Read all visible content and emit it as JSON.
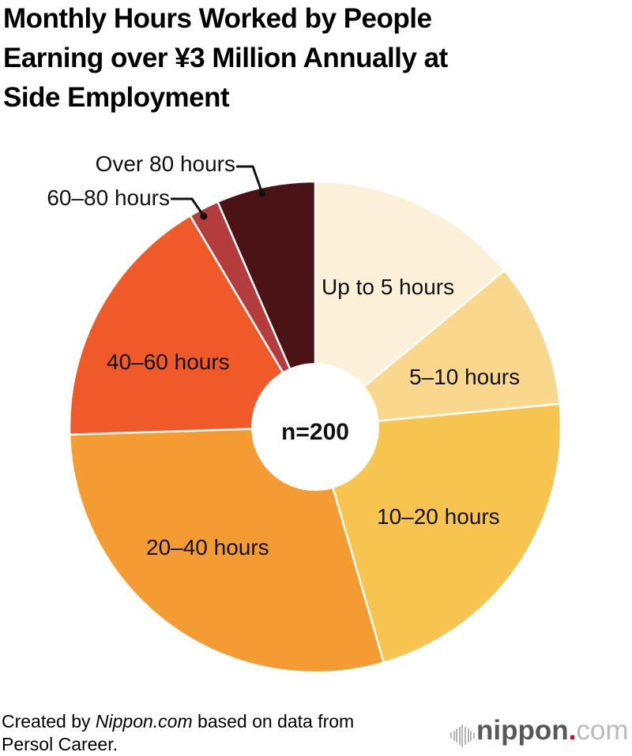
{
  "header": {
    "title_lines": [
      "Monthly Hours Worked by People",
      "Earning over ¥3 Million Annually at",
      "Side Employment"
    ]
  },
  "chart_data": {
    "type": "pie",
    "title": "Monthly Hours Worked by People Earning over ¥3 Million Annually at Side Employment",
    "center_label": "n=200",
    "sample_size": 200,
    "start_angle_deg": 0,
    "direction": "clockwise",
    "donut_hole": true,
    "values_estimated_from_angles": true,
    "slices": [
      {
        "label": "Up to 5 hours",
        "value_pct": 14,
        "color": "#FCF1D8",
        "label_placement": "inside"
      },
      {
        "label": "5–10 hours",
        "value_pct": 9.5,
        "color": "#F9D78C",
        "label_placement": "inside"
      },
      {
        "label": "10–20 hours",
        "value_pct": 22,
        "color": "#F7C44F",
        "label_placement": "inside"
      },
      {
        "label": "20–40 hours",
        "value_pct": 29,
        "color": "#F49B31",
        "label_placement": "inside"
      },
      {
        "label": "40–60 hours",
        "value_pct": 17,
        "color": "#F05A28",
        "label_placement": "inside"
      },
      {
        "label": "60–80 hours",
        "value_pct": 2,
        "color": "#B43C3D",
        "label_placement": "callout"
      },
      {
        "label": "Over 80 hours",
        "value_pct": 6.5,
        "color": "#4C1316",
        "label_placement": "callout"
      }
    ]
  },
  "footer": {
    "credit": {
      "prefix": "Created by ",
      "source": "Nippon.com",
      "suffix": " based on data from",
      "line2": "Persol Career."
    }
  },
  "logo": {
    "name": "nippon",
    "dot": ".",
    "tld": "com"
  }
}
